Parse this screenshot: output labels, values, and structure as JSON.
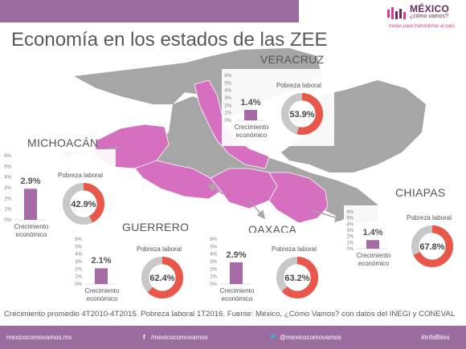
{
  "title": "Economía en los estados de las ZEE",
  "logo": {
    "name": "MÉXICO",
    "sub": "¿cómo vamos?",
    "tagline": "metas para transformar al país"
  },
  "footnote": "Crecimiento promedio 4T2010-4T2015. Pobreza laboral 1T2016. Fuente: México, ¿Cómo Vamos? con datos del INEGI y CONEVAL",
  "footer": {
    "site": "mexicocomovamos.mx",
    "facebook": "/mexicocomovamos",
    "twitter": "@mexicocomovamos",
    "hashtag": "#InfoBites",
    "facebook_icon": "f",
    "twitter_icon": "🐦"
  },
  "colors": {
    "bar": "#a66aa4",
    "donut_fill": "#e8574a",
    "donut_rest": "#c8c8c8",
    "map_highlight": "#d66fc0",
    "map_base": "#a6a6a6"
  },
  "labels": {
    "bar_caption": "Crecimiento económico",
    "donut_caption": "Pobreza laboral"
  },
  "chart_data": [
    {
      "type": "bar",
      "state": "VERACRUZ",
      "categories": [
        "Crecimiento económico"
      ],
      "values": [
        1.4
      ],
      "unit": "%",
      "ylim": [
        0,
        6
      ],
      "ticks": [
        "0%",
        "1%",
        "2%",
        "3%",
        "4%",
        "5%",
        "6%"
      ],
      "pobreza_laboral": 53.9
    },
    {
      "type": "bar",
      "state": "MICHOACÁN",
      "categories": [
        "Crecimiento económico"
      ],
      "values": [
        2.9
      ],
      "unit": "%",
      "ylim": [
        0,
        6
      ],
      "ticks": [
        "0%",
        "1%",
        "2%",
        "3%",
        "4%",
        "5%",
        "6%"
      ],
      "pobreza_laboral": 42.9
    },
    {
      "type": "bar",
      "state": "GUERRERO",
      "categories": [
        "Crecimiento económico"
      ],
      "values": [
        2.1
      ],
      "unit": "%",
      "ylim": [
        0,
        6
      ],
      "ticks": [
        "0%",
        "1%",
        "2%",
        "3%",
        "4%",
        "5%",
        "6%"
      ],
      "pobreza_laboral": 62.4
    },
    {
      "type": "bar",
      "state": "OAXACA",
      "categories": [
        "Crecimiento económico"
      ],
      "values": [
        2.9
      ],
      "unit": "%",
      "ylim": [
        0,
        6
      ],
      "ticks": [
        "0%",
        "1%",
        "2%",
        "3%",
        "4%",
        "5%",
        "6%"
      ],
      "pobreza_laboral": 63.2
    },
    {
      "type": "bar",
      "state": "CHIAPAS",
      "categories": [
        "Crecimiento económico"
      ],
      "values": [
        1.4
      ],
      "unit": "%",
      "ylim": [
        0,
        6
      ],
      "ticks": [
        "0%",
        "1%",
        "2%",
        "3%",
        "4%",
        "5%",
        "6%"
      ],
      "pobreza_laboral": 67.8
    }
  ]
}
